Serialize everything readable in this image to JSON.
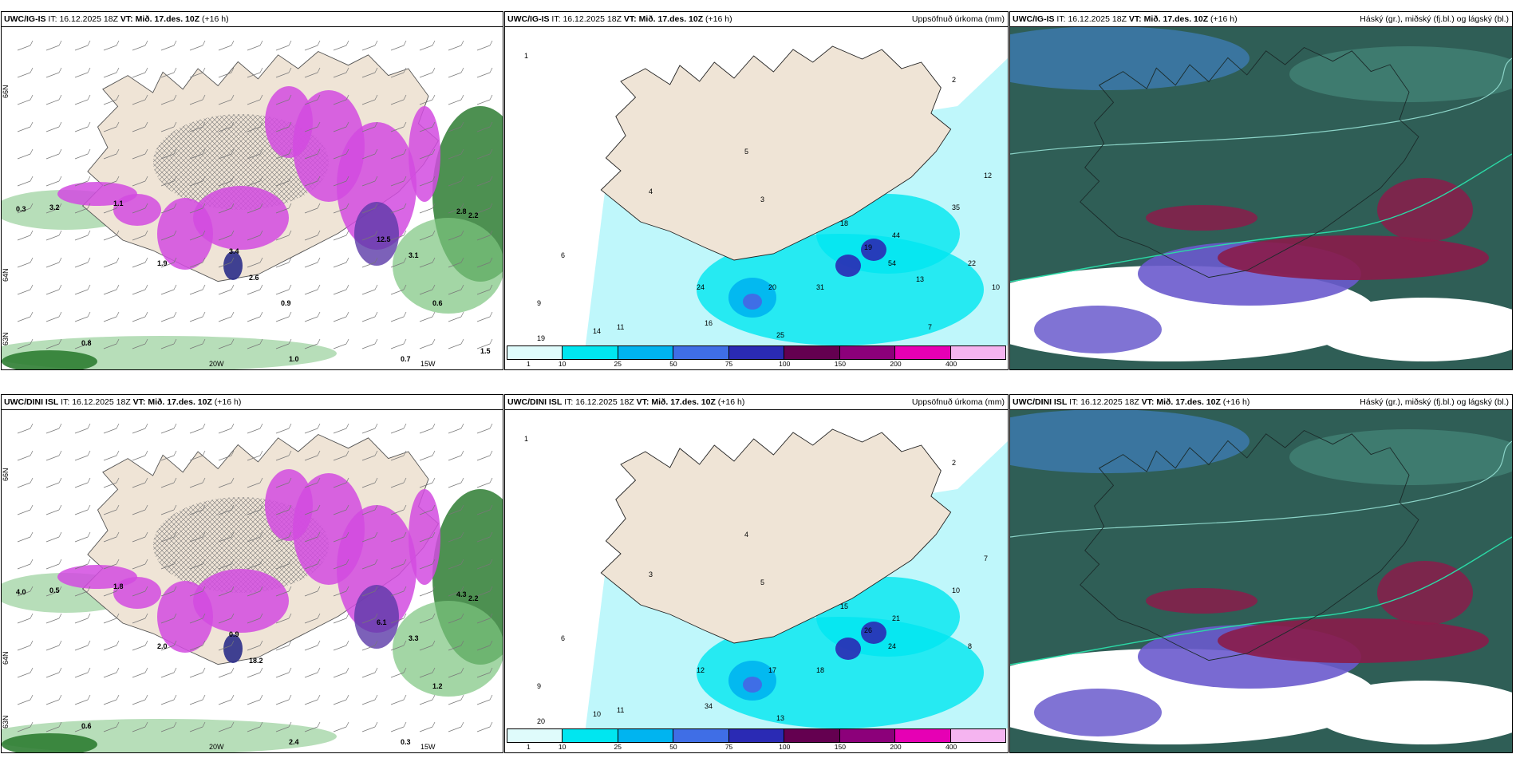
{
  "panels": [
    {
      "model": "UWC/IG-IS",
      "it_label": "IT:",
      "it_value": "16.12.2025 18Z",
      "vt_label": "VT:",
      "vt_value": "Mið. 17.des. 10Z",
      "lead": "(+16 h)",
      "desc": "",
      "kind": "precip_wind",
      "lat_labels": [
        "66N",
        "64N",
        "63N"
      ],
      "lon_labels": [
        "20W",
        "15W"
      ],
      "values": [
        "0.3",
        "3.2",
        "1.1",
        "1.9",
        "3.4",
        "2.6",
        "12.5",
        "3.1",
        "2.8",
        "2.2",
        "0.8",
        "0.6",
        "1.0",
        "0.7",
        "1.5",
        "0.9"
      ]
    },
    {
      "model": "UWC/IG-IS",
      "it_label": "IT:",
      "it_value": "16.12.2025 18Z",
      "vt_label": "VT:",
      "vt_value": "Mið. 17.des. 10Z",
      "lead": "(+16 h)",
      "desc": "Uppsöfnuð úrkoma (mm)",
      "kind": "accum",
      "values": [
        "1",
        "2",
        "4",
        "5",
        "3",
        "6",
        "9",
        "11",
        "19",
        "14",
        "24",
        "16",
        "20",
        "31",
        "25",
        "19",
        "44",
        "54",
        "18",
        "35",
        "22",
        "12",
        "10",
        "13",
        "7"
      ],
      "legend_ticks": [
        "1",
        "10",
        "25",
        "50",
        "75",
        "100",
        "150",
        "200",
        "400"
      ]
    },
    {
      "model": "UWC/IG-IS",
      "it_label": "IT:",
      "it_value": "16.12.2025 18Z",
      "vt_label": "VT:",
      "vt_value": "Mið. 17.des. 10Z",
      "lead": "(+16 h)",
      "desc": "Háský (gr.), miðský (fj.bl.) og lágský (bl.)",
      "kind": "cloud"
    },
    {
      "model": "UWC/DINI ISL",
      "it_label": "IT:",
      "it_value": "16.12.2025 18Z",
      "vt_label": "VT:",
      "vt_value": "Mið. 17.des. 10Z",
      "lead": "(+16 h)",
      "desc": "",
      "kind": "precip_wind",
      "lat_labels": [
        "66N",
        "64N",
        "63N"
      ],
      "lon_labels": [
        "20W",
        "15W"
      ],
      "values": [
        "4.0",
        "0.5",
        "1.8",
        "2.0",
        "0.9",
        "18.2",
        "6.1",
        "3.3",
        "4.3",
        "2.2",
        "0.6",
        "1.2",
        "2.4",
        "0.3"
      ]
    },
    {
      "model": "UWC/DINI ISL",
      "it_label": "IT:",
      "it_value": "16.12.2025 18Z",
      "vt_label": "VT:",
      "vt_value": "Mið. 17.des. 10Z",
      "lead": "(+16 h)",
      "desc": "Uppsöfnuð úrkoma (mm)",
      "kind": "accum",
      "values": [
        "1",
        "2",
        "3",
        "4",
        "5",
        "6",
        "9",
        "11",
        "20",
        "10",
        "12",
        "34",
        "17",
        "18",
        "13",
        "26",
        "21",
        "24",
        "15",
        "10",
        "8",
        "7"
      ],
      "legend_ticks": [
        "1",
        "10",
        "25",
        "50",
        "75",
        "100",
        "150",
        "200",
        "400"
      ]
    },
    {
      "model": "UWC/DINI ISL",
      "it_label": "IT:",
      "it_value": "16.12.2025 18Z",
      "vt_label": "VT:",
      "vt_value": "Mið. 17.des. 10Z",
      "lead": "(+16 h)",
      "desc": "Háský (gr.), miðský (fj.bl.) og lágský (bl.)",
      "kind": "cloud"
    }
  ],
  "legend_colors": [
    "#dffbfb",
    "#00e6f0",
    "#00b4f0",
    "#3f6ee6",
    "#2a2ab4",
    "#640050",
    "#8c007a",
    "#e600b4",
    "#f5b4f0"
  ]
}
